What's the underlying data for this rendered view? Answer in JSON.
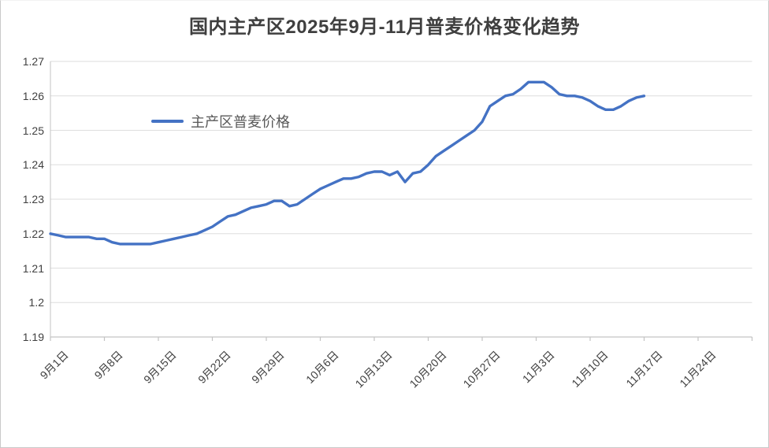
{
  "chart_data": {
    "type": "line",
    "title": "国内主产区2025年9月-11月普麦价格变化趋势",
    "xlabel": "",
    "ylabel": "",
    "ylim": [
      1.19,
      1.27
    ],
    "y_tick_step": 0.01,
    "grid": true,
    "legend_position": "inside-upper-left",
    "x_frequency": "daily",
    "x_range_of_data": [
      "9月1日",
      "11月17日"
    ],
    "x_ticklabels": [
      "9月1日",
      "9月8日",
      "9月15日",
      "9月22日",
      "9月29日",
      "10月6日",
      "10月13日",
      "10月20日",
      "10月27日",
      "11月3日",
      "11月10日",
      "11月17日",
      "11月24日"
    ],
    "y_ticklabels": [
      "1.19",
      "1.2",
      "1.21",
      "1.22",
      "1.23",
      "1.24",
      "1.25",
      "1.26",
      "1.27"
    ],
    "series": [
      {
        "name": "主产区普麦价格",
        "values": [
          1.22,
          1.2195,
          1.219,
          1.219,
          1.219,
          1.219,
          1.2185,
          1.2185,
          1.2175,
          1.217,
          1.217,
          1.217,
          1.217,
          1.217,
          1.2175,
          1.218,
          1.2185,
          1.219,
          1.2195,
          1.22,
          1.221,
          1.222,
          1.2235,
          1.225,
          1.2255,
          1.2265,
          1.2275,
          1.228,
          1.2285,
          1.2295,
          1.2295,
          1.228,
          1.2285,
          1.23,
          1.2315,
          1.233,
          1.234,
          1.235,
          1.236,
          1.236,
          1.2365,
          1.2375,
          1.238,
          1.238,
          1.237,
          1.238,
          1.235,
          1.2375,
          1.238,
          1.24,
          1.2425,
          1.244,
          1.2455,
          1.247,
          1.2485,
          1.25,
          1.2525,
          1.257,
          1.2585,
          1.26,
          1.2605,
          1.262,
          1.264,
          1.264,
          1.264,
          1.2625,
          1.2605,
          1.26,
          1.26,
          1.2595,
          1.2585,
          1.257,
          1.256,
          1.256,
          1.257,
          1.2585,
          1.2595,
          1.26
        ]
      }
    ],
    "colors": {
      "line": "#4472C4",
      "grid": "#dedede",
      "axis": "#c3c3c3",
      "tick_label": "#404040",
      "title": "#3f3f3f",
      "legend_text": "#595959",
      "background": "#ffffff"
    }
  }
}
